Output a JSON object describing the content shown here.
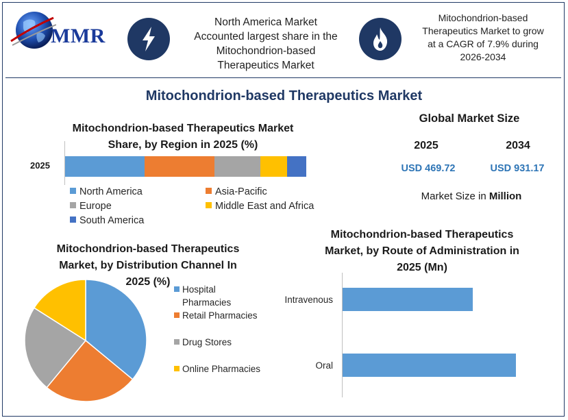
{
  "header": {
    "logo_text": "MMR",
    "info1": [
      "North America Market",
      "Accounted largest share in the",
      "Mitochondrion-based",
      "Therapeutics Market"
    ],
    "info2": [
      "Mitochondrion-based",
      "Therapeutics Market to grow",
      "at a CAGR of 7.9% during",
      "2026-2034"
    ],
    "icon1": "lightning-icon",
    "icon2": "flame-icon"
  },
  "main_title": "Mitochondrion-based Therapeutics Market",
  "market_size": {
    "title": "Global Market Size",
    "year1": "2025",
    "year2": "2034",
    "value1": "USD 469.72",
    "value2": "USD 931.17",
    "note_prefix": "Market Size in ",
    "note_bold": "Million"
  },
  "colors": {
    "blue": "#5b9bd5",
    "orange": "#ed7d31",
    "gray": "#a5a5a5",
    "yellow": "#ffc000",
    "dark_blue": "#4472c4",
    "navy": "#1f3864"
  },
  "chart_data": [
    {
      "type": "bar",
      "stacked": true,
      "orientation": "horizontal",
      "title": "Mitochondrion-based Therapeutics Market Share, by Region in 2025 (%)",
      "title_lines": [
        "Mitochondrion-based Therapeutics Market",
        "Share, by Region in 2025 (%)"
      ],
      "categories": [
        "2025"
      ],
      "series": [
        {
          "name": "North America",
          "values": [
            33
          ],
          "color": "#5b9bd5"
        },
        {
          "name": "Asia-Pacific",
          "values": [
            29
          ],
          "color": "#ed7d31"
        },
        {
          "name": "Europe",
          "values": [
            19
          ],
          "color": "#a5a5a5"
        },
        {
          "name": "Middle East and Africa",
          "values": [
            11
          ],
          "color": "#ffc000"
        },
        {
          "name": "South America",
          "values": [
            8
          ],
          "color": "#4472c4"
        }
      ],
      "xlim": [
        0,
        108
      ],
      "legend_position": "bottom"
    },
    {
      "type": "pie",
      "title": "Mitochondrion-based Therapeutics Market, by Distribution Channel In 2025 (%)",
      "title_lines": [
        "Mitochondrion-based Therapeutics",
        "Market, by Distribution Channel In",
        "2025 (%)"
      ],
      "categories": [
        "Hospital Pharmacies",
        "Retail Pharmacies",
        "Drug Stores",
        "Online Pharmacies"
      ],
      "values": [
        36,
        25,
        23,
        16
      ],
      "colors": [
        "#5b9bd5",
        "#ed7d31",
        "#a5a5a5",
        "#ffc000"
      ],
      "legend_position": "right"
    },
    {
      "type": "bar",
      "orientation": "horizontal",
      "title": "Mitochondrion-based Therapeutics Market, by Route of Administration in 2025 (Mn)",
      "title_lines": [
        "Mitochondrion-based Therapeutics",
        "Market, by Route of Administration in",
        "2025 (Mn)"
      ],
      "categories": [
        "Intravenous",
        "Oral"
      ],
      "values": [
        190,
        253
      ],
      "color": "#5b9bd5",
      "xlim": [
        0,
        300
      ]
    }
  ]
}
